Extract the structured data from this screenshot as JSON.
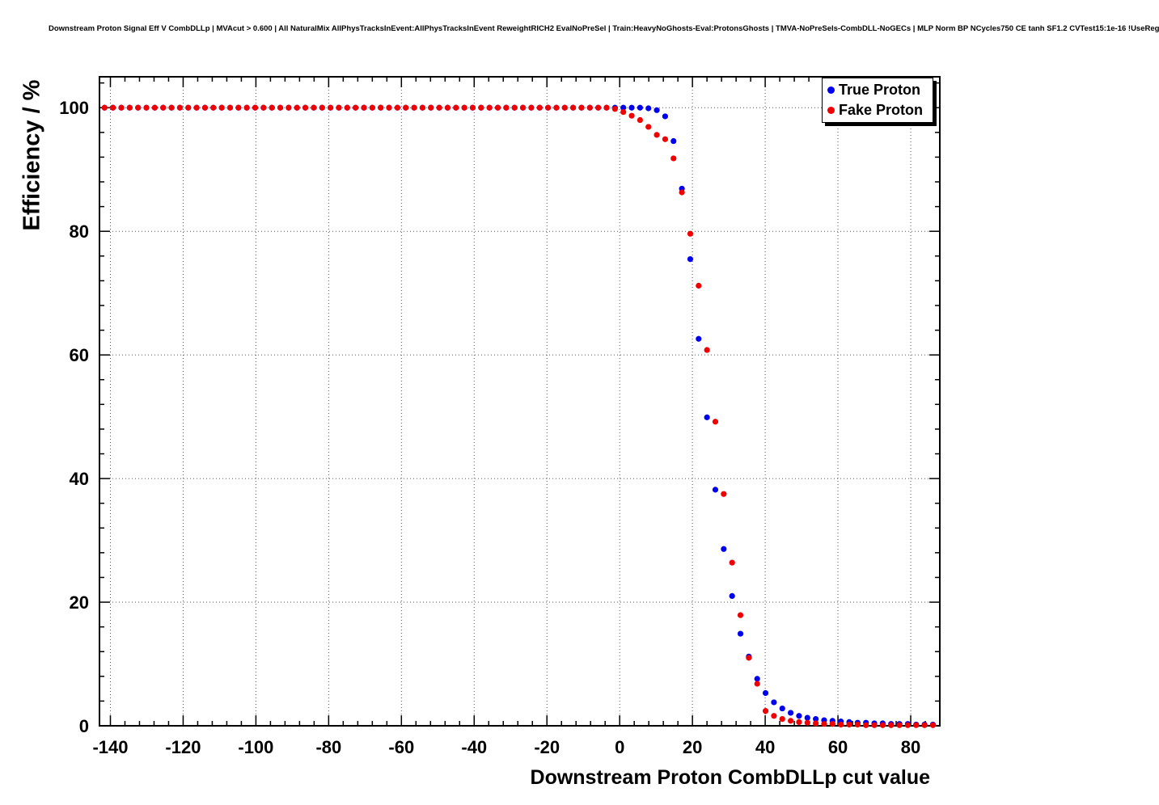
{
  "title": "Downstream Proton Signal Eff V CombDLLp | MVAcut > 0.600 | All NaturalMix AllPhysTracksInEvent:AllPhysTracksInEvent ReweightRICH2 EvalNoPreSel | Train:HeavyNoGhosts-Eval:ProtonsGhosts | TMVA-NoPreSels-CombDLL-NoGECs | MLP Norm BP NCycles750 CE tanh SF1.2 CVTest15:1e-16 !UseReg",
  "axes": {
    "ylabel": "Efficiency / %",
    "xlabel": "Downstream Proton CombDLLp cut value"
  },
  "legend": {
    "entries": [
      {
        "label": "True Proton",
        "color": "#0000f0"
      },
      {
        "label": "Fake Proton",
        "color": "#f00000"
      }
    ]
  },
  "chart_data": {
    "type": "scatter",
    "title": "Downstream Proton Signal Eff V CombDLLp",
    "xlabel": "Downstream Proton CombDLLp cut value",
    "ylabel": "Efficiency / %",
    "xlim": [
      -143,
      88
    ],
    "ylim": [
      0,
      105
    ],
    "xticks": [
      -140,
      -120,
      -100,
      -80,
      -60,
      -40,
      -20,
      0,
      20,
      40,
      60,
      80
    ],
    "yticks": [
      0,
      20,
      40,
      60,
      80,
      100
    ],
    "grid": true,
    "grid_style": "dotted",
    "legend_position": "top-right",
    "x": [
      -141.6,
      -139.3,
      -137.0,
      -134.7,
      -132.4,
      -130.1,
      -127.8,
      -125.5,
      -123.2,
      -120.9,
      -118.6,
      -116.3,
      -114.0,
      -111.7,
      -109.4,
      -107.1,
      -104.8,
      -102.5,
      -100.2,
      -97.9,
      -95.6,
      -93.3,
      -91.0,
      -88.7,
      -86.4,
      -84.1,
      -81.8,
      -79.5,
      -77.2,
      -74.9,
      -72.6,
      -70.3,
      -68.0,
      -65.7,
      -63.4,
      -61.1,
      -58.8,
      -56.5,
      -54.2,
      -51.9,
      -49.6,
      -47.3,
      -45.0,
      -42.7,
      -40.4,
      -38.1,
      -35.8,
      -33.5,
      -31.2,
      -28.9,
      -26.6,
      -24.3,
      -22.0,
      -19.7,
      -17.4,
      -15.1,
      -12.8,
      -10.5,
      -8.2,
      -5.9,
      -3.6,
      -1.3,
      1.0,
      3.3,
      5.6,
      7.9,
      10.2,
      12.5,
      14.8,
      17.1,
      19.4,
      21.7,
      24.0,
      26.3,
      28.6,
      30.9,
      33.2,
      35.5,
      37.8,
      40.1,
      42.4,
      44.7,
      47.0,
      49.3,
      51.6,
      53.9,
      56.2,
      58.5,
      60.8,
      63.1,
      65.4,
      67.7,
      70.0,
      72.3,
      74.6,
      76.9,
      79.2,
      81.5,
      83.8,
      86.1
    ],
    "series": [
      {
        "name": "True Proton",
        "color": "#0000f0",
        "values": [
          100,
          100,
          100,
          100,
          100,
          100,
          100,
          100,
          100,
          100,
          100,
          100,
          100,
          100,
          100,
          100,
          100,
          100,
          100,
          100,
          100,
          100,
          100,
          100,
          100,
          100,
          100,
          100,
          100,
          100,
          100,
          100,
          100,
          100,
          100,
          100,
          100,
          100,
          100,
          100,
          100,
          100,
          100,
          100,
          100,
          100,
          100,
          100,
          100,
          100,
          100,
          100,
          100,
          100,
          100,
          100,
          100,
          100,
          100,
          100,
          100,
          100,
          100,
          100,
          100,
          99.9,
          99.6,
          98.6,
          94.6,
          86.9,
          75.5,
          62.6,
          49.9,
          38.2,
          28.6,
          21.0,
          14.9,
          11.2,
          7.6,
          5.3,
          3.8,
          2.8,
          2.1,
          1.6,
          1.3,
          1.1,
          0.9,
          0.8,
          0.7,
          0.6,
          0.5,
          0.5,
          0.4,
          0.4,
          0.3,
          0.3,
          0.3,
          0.2,
          0.2,
          0.2
        ]
      },
      {
        "name": "Fake Proton",
        "color": "#f00000",
        "values": [
          100,
          100,
          100,
          100,
          100,
          100,
          100,
          100,
          100,
          100,
          100,
          100,
          100,
          100,
          100,
          100,
          100,
          100,
          100,
          100,
          100,
          100,
          100,
          100,
          100,
          100,
          100,
          100,
          100,
          100,
          100,
          100,
          100,
          100,
          100,
          100,
          100,
          100,
          100,
          100,
          100,
          100,
          100,
          100,
          100,
          100,
          100,
          100,
          100,
          100,
          100,
          100,
          100,
          100,
          100,
          100,
          100,
          100,
          100,
          100,
          100,
          99.8,
          99.3,
          98.7,
          98.0,
          96.9,
          95.6,
          94.9,
          91.8,
          86.3,
          79.6,
          71.2,
          60.8,
          49.2,
          37.5,
          26.4,
          17.9,
          11.0,
          6.8,
          2.4,
          1.6,
          1.1,
          0.8,
          0.6,
          0.5,
          0.4,
          0.3,
          0.3,
          0.2,
          0.2,
          0.2,
          0.1,
          0.1,
          0.1,
          0.1,
          0.1,
          0.1,
          0.1,
          0.1,
          0.1
        ]
      }
    ]
  }
}
